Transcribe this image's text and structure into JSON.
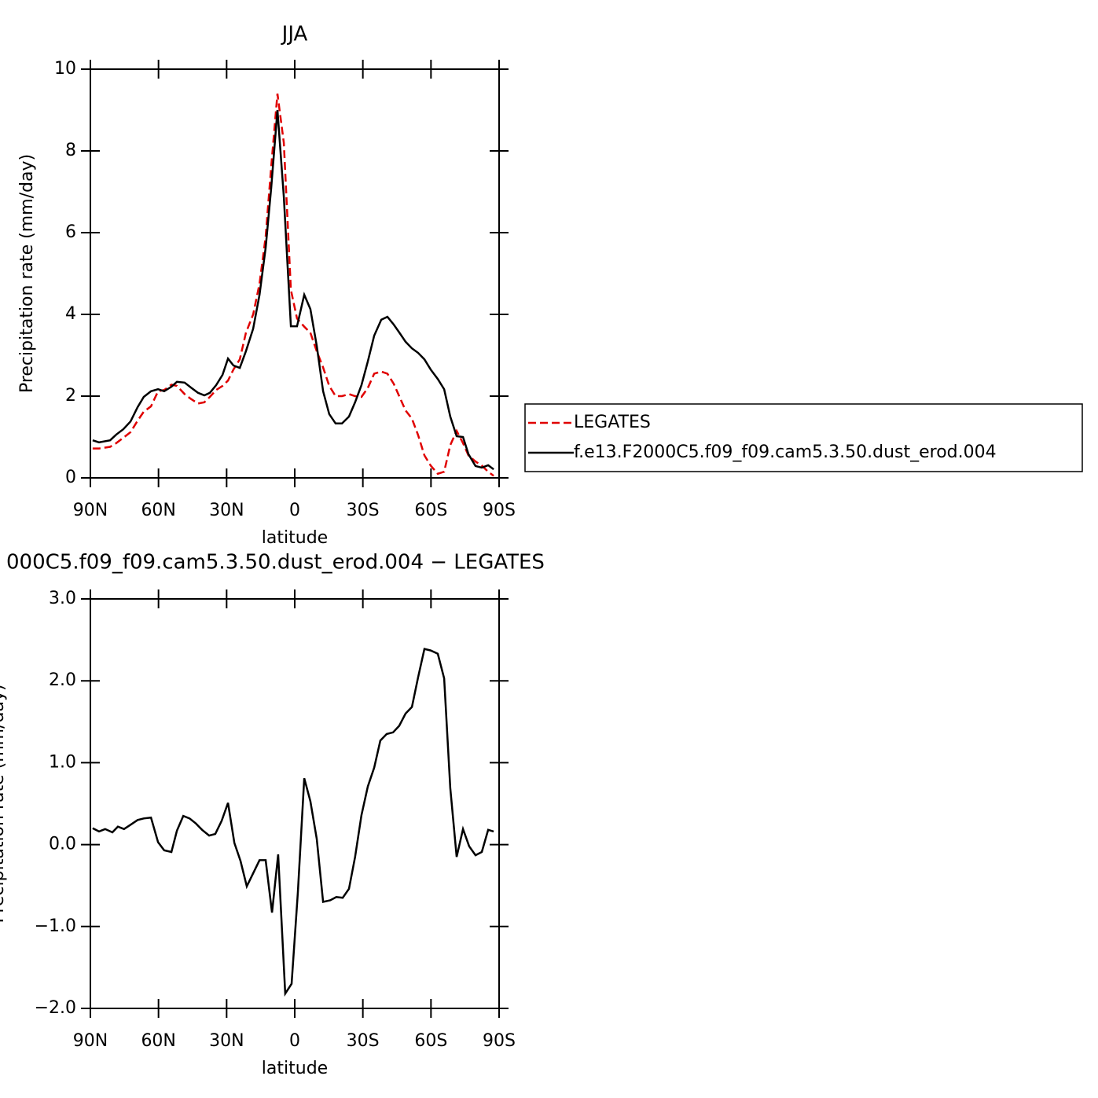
{
  "chart_data": [
    {
      "type": "line",
      "title": "JJA",
      "xlabel": "latitude",
      "ylabel": "Precipitation rate (mm/day)",
      "x": [
        89.0,
        86.2,
        81.3,
        78.6,
        75.5,
        72.3,
        69.2,
        66.5,
        63.3,
        60.2,
        57.5,
        54.3,
        51.9,
        48.5,
        45.7,
        42.6,
        39.8,
        37.4,
        34.6,
        31.8,
        29.4,
        27.0,
        24.2,
        21.5,
        18.3,
        15.5,
        12.8,
        10.4,
        7.6,
        4.8,
        1.7,
        -1.0,
        -4.2,
        -6.9,
        -9.7,
        -12.5,
        -15.2,
        -18.0,
        -20.8,
        -23.9,
        -26.6,
        -29.4,
        -32.2,
        -35.0,
        -38.1,
        -40.8,
        -43.6,
        -46.0,
        -48.8,
        -51.6,
        -54.3,
        -57.1,
        -59.9,
        -63.0,
        -65.8,
        -68.5,
        -71.3,
        -74.1,
        -76.5,
        -79.6,
        -82.4,
        -85.2,
        -87.6
      ],
      "xlim": [
        90,
        -90
      ],
      "xticks": [
        {
          "value": 90,
          "label": "90N"
        },
        {
          "value": 60,
          "label": "60N"
        },
        {
          "value": 30,
          "label": "30N"
        },
        0,
        {
          "value": -30,
          "label": "30S"
        },
        {
          "value": -60,
          "label": "60S"
        },
        {
          "value": -90,
          "label": "90S"
        }
      ],
      "ylim": [
        0,
        10
      ],
      "yticks": [
        0,
        2,
        4,
        6,
        8,
        10
      ],
      "legend": "right",
      "series": [
        {
          "name": "LEGATES",
          "color": "#e00000",
          "style": "dashed",
          "values": [
            0.72,
            0.72,
            0.76,
            0.85,
            0.98,
            1.12,
            1.4,
            1.62,
            1.75,
            2.12,
            2.15,
            2.28,
            2.25,
            2.05,
            1.93,
            1.82,
            1.85,
            1.98,
            2.15,
            2.25,
            2.38,
            2.65,
            2.9,
            3.55,
            4.0,
            4.75,
            5.9,
            7.6,
            9.4,
            8.2,
            4.6,
            3.9,
            3.7,
            3.55,
            3.1,
            2.7,
            2.25,
            2.0,
            2.0,
            2.05,
            2.0,
            1.98,
            2.2,
            2.55,
            2.6,
            2.55,
            2.3,
            2.0,
            1.65,
            1.45,
            1.05,
            0.55,
            0.3,
            0.1,
            0.15,
            0.8,
            1.15,
            0.85,
            0.55,
            0.4,
            0.3,
            0.15,
            0.05
          ]
        },
        {
          "name": "f.e13.F2000C5.f09_f09.cam5.3.50.dust_erod.004",
          "color": "#000000",
          "style": "solid",
          "values": [
            0.92,
            0.87,
            0.92,
            1.06,
            1.19,
            1.38,
            1.73,
            1.98,
            2.12,
            2.17,
            2.12,
            2.23,
            2.35,
            2.33,
            2.21,
            2.08,
            2.02,
            2.08,
            2.27,
            2.52,
            2.92,
            2.75,
            2.69,
            3.1,
            3.65,
            4.48,
            5.63,
            7.08,
            9.0,
            6.88,
            3.71,
            3.71,
            4.48,
            4.13,
            3.23,
            2.12,
            1.56,
            1.33,
            1.33,
            1.5,
            1.85,
            2.27,
            2.85,
            3.48,
            3.87,
            3.94,
            3.75,
            3.56,
            3.33,
            3.17,
            3.06,
            2.9,
            2.65,
            2.42,
            2.17,
            1.5,
            1.02,
            1.0,
            0.58,
            0.29,
            0.25,
            0.31,
            0.21
          ]
        }
      ]
    },
    {
      "type": "line",
      "title": "000C5.f09_f09.cam5.3.50.dust_erod.004 − LEGATES",
      "xlabel": "latitude",
      "ylabel": "Precipitation rate (mm/day)",
      "x": [
        89.0,
        86.2,
        83.5,
        80.3,
        77.9,
        75.2,
        72.4,
        69.2,
        66.5,
        63.3,
        60.2,
        57.5,
        54.3,
        51.9,
        49.1,
        46.3,
        43.6,
        40.8,
        37.7,
        35.0,
        32.2,
        29.4,
        26.6,
        23.9,
        21.1,
        18.3,
        15.5,
        12.8,
        10.0,
        7.3,
        4.2,
        1.4,
        -1.4,
        -4.2,
        -6.9,
        -9.7,
        -12.5,
        -15.6,
        -18.3,
        -21.1,
        -23.9,
        -26.6,
        -29.4,
        -32.2,
        -35.0,
        -37.7,
        -40.5,
        -43.3,
        -46.0,
        -48.8,
        -51.6,
        -54.3,
        -57.1,
        -59.9,
        -63.0,
        -65.8,
        -68.5,
        -71.3,
        -74.1,
        -76.8,
        -79.6,
        -82.4,
        -85.2,
        -87.6
      ],
      "xlim": [
        90,
        -90
      ],
      "xticks": [
        {
          "value": 90,
          "label": "90N"
        },
        {
          "value": 60,
          "label": "60N"
        },
        {
          "value": 30,
          "label": "30N"
        },
        0,
        {
          "value": -30,
          "label": "30S"
        },
        {
          "value": -60,
          "label": "60S"
        },
        {
          "value": -90,
          "label": "90S"
        }
      ],
      "ylim": [
        -2,
        3
      ],
      "yticks": [
        {
          "value": -2,
          "label": "−2.0"
        },
        {
          "value": -1,
          "label": "−1.0"
        },
        {
          "value": 0,
          "label": "0.0"
        },
        {
          "value": 1,
          "label": "1.0"
        },
        {
          "value": 2,
          "label": "2.0"
        },
        {
          "value": 3,
          "label": "3.0"
        }
      ],
      "series": [
        {
          "color": "#000000",
          "style": "solid",
          "values": [
            0.2,
            0.16,
            0.19,
            0.15,
            0.22,
            0.19,
            0.24,
            0.3,
            0.32,
            0.33,
            0.03,
            -0.07,
            -0.09,
            0.17,
            0.35,
            0.32,
            0.26,
            0.18,
            0.11,
            0.13,
            0.29,
            0.51,
            0.02,
            -0.2,
            -0.51,
            -0.35,
            -0.19,
            -0.19,
            -0.83,
            -0.12,
            -1.82,
            -1.7,
            -0.58,
            0.81,
            0.53,
            0.07,
            -0.7,
            -0.68,
            -0.64,
            -0.65,
            -0.54,
            -0.15,
            0.36,
            0.71,
            0.94,
            1.27,
            1.35,
            1.37,
            1.45,
            1.6,
            1.68,
            2.04,
            2.39,
            2.37,
            2.33,
            2.03,
            0.69,
            -0.15,
            0.19,
            -0.02,
            -0.13,
            -0.09,
            0.18,
            0.16
          ]
        }
      ]
    }
  ]
}
